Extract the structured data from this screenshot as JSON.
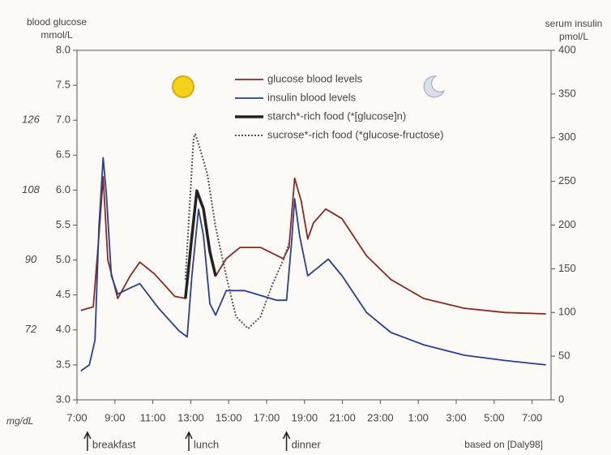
{
  "chart_data": {
    "type": "line",
    "y_label_top": "blood glucose",
    "y_unit": "mmol/L",
    "y2_label_top": "serum insulin",
    "y2_unit": "pmol/L",
    "y3_unit": "mg/dL",
    "source": "based on [Daly98]",
    "xlim": [
      0,
      25
    ],
    "xticks": [
      {
        "value": 0,
        "label": "7:00"
      },
      {
        "value": 2,
        "label": "9:00"
      },
      {
        "value": 4,
        "label": "11:00"
      },
      {
        "value": 6,
        "label": "13:00"
      },
      {
        "value": 8,
        "label": "15:00"
      },
      {
        "value": 10,
        "label": "17:00"
      },
      {
        "value": 12,
        "label": "19:00"
      },
      {
        "value": 14,
        "label": "21:00"
      },
      {
        "value": 16,
        "label": "23:00"
      },
      {
        "value": 18,
        "label": "1:00"
      },
      {
        "value": 20,
        "label": "3:00"
      },
      {
        "value": 22,
        "label": "5:00"
      },
      {
        "value": 24,
        "label": "7:00"
      }
    ],
    "ylim": [
      3,
      8
    ],
    "yticks": [
      {
        "value": 3,
        "label": "3.0"
      },
      {
        "value": 3.5,
        "label": "3.5"
      },
      {
        "value": 4,
        "label": "4.0"
      },
      {
        "value": 4.5,
        "label": "4.5"
      },
      {
        "value": 5,
        "label": "5.0"
      },
      {
        "value": 5.5,
        "label": "5.5"
      },
      {
        "value": 6,
        "label": "6.0"
      },
      {
        "value": 6.5,
        "label": "6.5"
      },
      {
        "value": 7,
        "label": "7.0"
      },
      {
        "value": 7.5,
        "label": "7.5"
      },
      {
        "value": 8,
        "label": "8.0"
      }
    ],
    "y2lim": [
      0,
      400
    ],
    "y2ticks": [
      0,
      50,
      100,
      150,
      200,
      250,
      300,
      350,
      400
    ],
    "y3lim": [
      54,
      144
    ],
    "y3ticks": [
      72,
      90,
      108,
      126
    ],
    "events": [
      {
        "label": "breakfast",
        "x": 0.55
      },
      {
        "label": "lunch",
        "x": 5.9
      },
      {
        "label": "dinner",
        "x": 11.05
      }
    ],
    "series": [
      {
        "name": "glucose blood levels",
        "color": "#8b2a1e",
        "style": "solid",
        "x": [
          0.2,
          0.86,
          1.16,
          1.38,
          1.63,
          2.15,
          2.8,
          3.31,
          4.09,
          5.16,
          5.72,
          6.02,
          6.32,
          6.67,
          7.01,
          7.31,
          7.87,
          8.6,
          9.68,
          10.88,
          11.18,
          11.48,
          11.83,
          12.17,
          12.47,
          13.12,
          13.98,
          15.27,
          16.56,
          18.28,
          20.43,
          22.58,
          24.73
        ],
        "values": [
          4.28,
          4.33,
          5.35,
          6.19,
          5.0,
          4.45,
          4.77,
          4.97,
          4.8,
          4.48,
          4.45,
          5.24,
          5.99,
          5.73,
          5.12,
          4.77,
          5.02,
          5.18,
          5.18,
          5.02,
          5.18,
          6.17,
          5.84,
          5.3,
          5.53,
          5.73,
          5.59,
          5.06,
          4.72,
          4.45,
          4.31,
          4.25,
          4.23
        ]
      },
      {
        "name": "insulin blood levels",
        "color": "#2a3f8f",
        "style": "solid",
        "axis": "y2",
        "x": [
          0.2,
          0.65,
          0.95,
          1.16,
          1.38,
          1.55,
          1.81,
          2.15,
          2.8,
          3.31,
          4.3,
          5.38,
          5.81,
          6.06,
          6.41,
          6.67,
          7.01,
          7.31,
          7.87,
          8.82,
          10.54,
          11.05,
          11.31,
          11.48,
          11.74,
          12.17,
          12.69,
          13.25,
          13.98,
          15.27,
          16.56,
          18.28,
          20.43,
          22.58,
          24.73
        ],
        "values": [
          33,
          40,
          68,
          198,
          277,
          235,
          142,
          121,
          128,
          133,
          105,
          79,
          72,
          142,
          218,
          188,
          110,
          97,
          125,
          125,
          114,
          114,
          179,
          230,
          188,
          142,
          151,
          161,
          142,
          100,
          77,
          63,
          51,
          45,
          40
        ]
      },
      {
        "name": "starch*-rich food (*[glucose]n)",
        "color": "#222222",
        "style": "double",
        "x": [
          5.72,
          6.02,
          6.32,
          6.67,
          7.01,
          7.31
        ],
        "values": [
          4.45,
          5.24,
          5.99,
          5.73,
          5.12,
          4.77
        ]
      },
      {
        "name": "sucrose*-rich food (*glucose-fructose)",
        "color": "#555555",
        "style": "dotted",
        "x": [
          5.72,
          6.15,
          6.24,
          6.45,
          6.88,
          7.31,
          7.87,
          8.39,
          9.03,
          9.68,
          10.32,
          10.88,
          11.18
        ],
        "values": [
          4.72,
          6.75,
          6.8,
          6.63,
          6.22,
          5.47,
          4.77,
          4.19,
          4.02,
          4.19,
          4.66,
          5.0,
          5.24
        ]
      }
    ]
  }
}
